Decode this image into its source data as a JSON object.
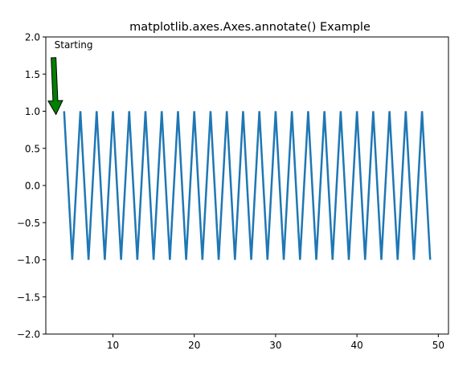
{
  "chart_data": {
    "type": "line",
    "title": "matplotlib.axes.Axes.annotate() Example",
    "xlabel": "",
    "ylabel": "",
    "xlim": [
      1.75,
      51.25
    ],
    "ylim": [
      -2.0,
      2.0
    ],
    "x_ticks": [
      10,
      20,
      30,
      40,
      50
    ],
    "y_ticks": [
      -2.0,
      -1.5,
      -1.0,
      -0.5,
      0.0,
      0.5,
      1.0,
      1.5,
      2.0
    ],
    "x_tick_labels": [
      "10",
      "20",
      "30",
      "40",
      "50"
    ],
    "y_tick_labels": [
      "−2.0",
      "−1.5",
      "−1.0",
      "−0.5",
      "0.0",
      "0.5",
      "1.0",
      "1.5",
      "2.0"
    ],
    "grid": false,
    "series": [
      {
        "color": "#1f77b4",
        "x": [
          4,
          5,
          6,
          7,
          8,
          9,
          10,
          11,
          12,
          13,
          14,
          15,
          16,
          17,
          18,
          19,
          20,
          21,
          22,
          23,
          24,
          25,
          26,
          27,
          28,
          29,
          30,
          31,
          32,
          33,
          34,
          35,
          36,
          37,
          38,
          39,
          40,
          41,
          42,
          43,
          44,
          45,
          46,
          47,
          48,
          49
        ],
        "y": [
          1,
          -1,
          1,
          -1,
          1,
          -1,
          1,
          -1,
          1,
          -1,
          1,
          -1,
          1,
          -1,
          1,
          -1,
          1,
          -1,
          1,
          -1,
          1,
          -1,
          1,
          -1,
          1,
          -1,
          1,
          -1,
          1,
          -1,
          1,
          -1,
          1,
          -1,
          1,
          -1,
          1,
          -1,
          1,
          -1,
          1,
          -1,
          1,
          -1,
          1,
          -1
        ]
      }
    ],
    "annotations": [
      {
        "text": "Starting",
        "xy": [
          3,
          1.0
        ],
        "xytext": [
          2.8,
          1.85
        ],
        "arrow_color": "#008000"
      }
    ]
  }
}
